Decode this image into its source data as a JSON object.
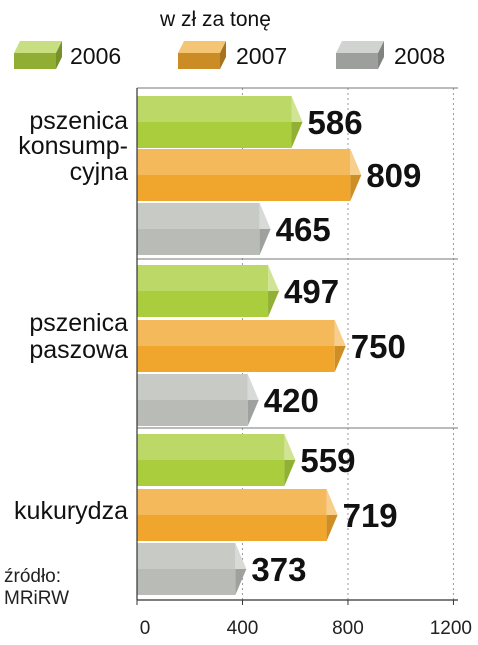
{
  "chart_data": {
    "type": "bar",
    "orientation": "horizontal",
    "subtitle": "w zł za tonę",
    "categories": [
      [
        "pszenica",
        "konsump-",
        "cyjna"
      ],
      [
        "pszenica",
        "paszowa"
      ],
      [
        "kukurydza"
      ]
    ],
    "series": [
      {
        "name": "2006",
        "values": [
          586,
          497,
          559
        ],
        "color": "#a9cd3c"
      },
      {
        "name": "2007",
        "values": [
          809,
          750,
          719
        ],
        "color": "#f0a52c"
      },
      {
        "name": "2008",
        "values": [
          465,
          420,
          373
        ],
        "color": "#b8bbb6"
      }
    ],
    "xlim": [
      0,
      1200
    ],
    "xticks": [
      "0",
      "400",
      "800",
      "1200"
    ],
    "grid": true,
    "legend_position": "top",
    "source": [
      "źródło:",
      "MRiRW"
    ]
  }
}
